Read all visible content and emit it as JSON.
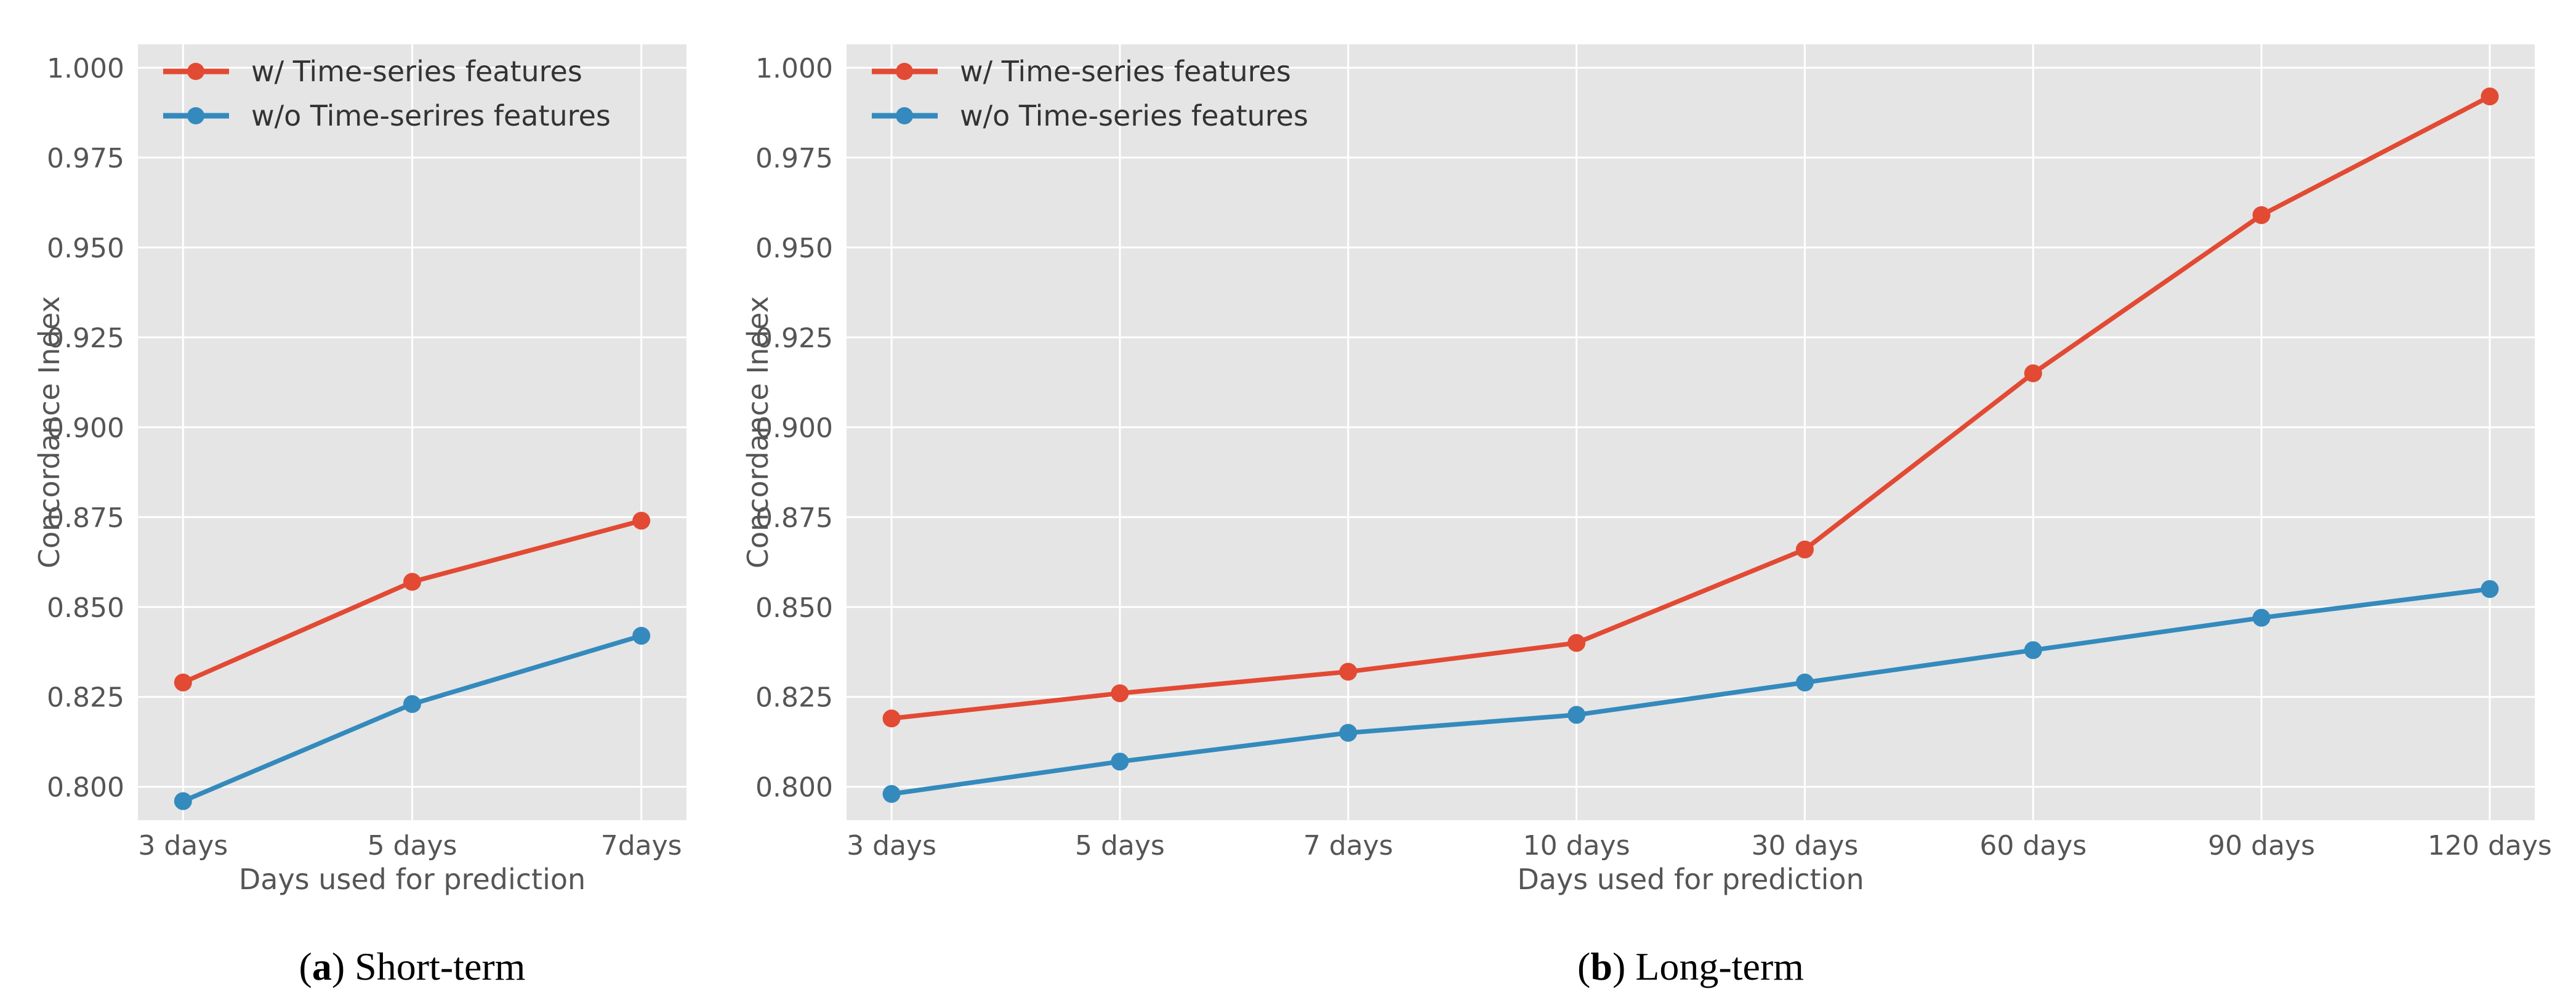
{
  "colors": {
    "panel_background": "#E5E5E5",
    "gridline": "#FFFFFF",
    "tick_text": "#555555",
    "caption_text": "#000000",
    "series_with": "#E24A33",
    "series_without": "#348ABD"
  },
  "chart_data": [
    {
      "id": "short-term",
      "type": "line",
      "caption": {
        "open": "(",
        "letter": "a",
        "rest": ") Short-term"
      },
      "xlabel": "Days used for prediction",
      "ylabel": "Concordance Index",
      "categories": [
        "3 days",
        "5 days",
        "7days"
      ],
      "ytick_values": [
        1.0,
        0.975,
        0.95,
        0.925,
        0.9,
        0.875,
        0.85,
        0.825,
        0.8
      ],
      "ytick_labels": [
        "1.000",
        "0.975",
        "0.950",
        "0.925",
        "0.900",
        "0.875",
        "0.850",
        "0.825",
        "0.800"
      ],
      "ylim": [
        0.7907,
        1.0065
      ],
      "grid": true,
      "legend_position": "upper left",
      "series": [
        {
          "name": "w/ Time-series features",
          "color": "#E24A33",
          "values": [
            0.829,
            0.857,
            0.874
          ]
        },
        {
          "name": "w/o Time-serires features",
          "color": "#348ABD",
          "values": [
            0.796,
            0.823,
            0.842
          ]
        }
      ]
    },
    {
      "id": "long-term",
      "type": "line",
      "caption": {
        "open": "(",
        "letter": "b",
        "rest": ") Long-term"
      },
      "xlabel": "Days used for prediction",
      "ylabel": "Concordance Index",
      "categories": [
        "3 days",
        "5 days",
        "7 days",
        "10 days",
        "30 days",
        "60 days",
        "90 days",
        "120 days"
      ],
      "ytick_values": [
        1.0,
        0.975,
        0.95,
        0.925,
        0.9,
        0.875,
        0.85,
        0.825,
        0.8
      ],
      "ytick_labels": [
        "1.000",
        "0.975",
        "0.950",
        "0.925",
        "0.900",
        "0.875",
        "0.850",
        "0.825",
        "0.800"
      ],
      "ylim": [
        0.7907,
        1.0065
      ],
      "grid": true,
      "legend_position": "upper left",
      "series": [
        {
          "name": "w/ Time-series features",
          "color": "#E24A33",
          "values": [
            0.819,
            0.826,
            0.832,
            0.84,
            0.866,
            0.915,
            0.959,
            0.992
          ]
        },
        {
          "name": "w/o Time-series features",
          "color": "#348ABD",
          "values": [
            0.798,
            0.807,
            0.815,
            0.82,
            0.829,
            0.838,
            0.847,
            0.855
          ]
        }
      ]
    }
  ]
}
